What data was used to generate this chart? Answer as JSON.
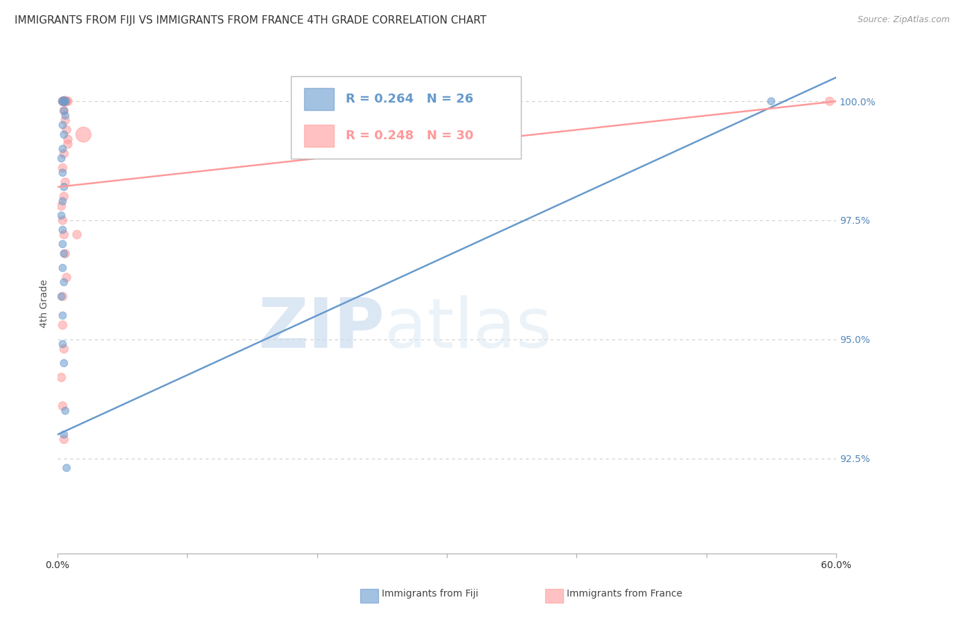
{
  "title": "IMMIGRANTS FROM FIJI VS IMMIGRANTS FROM FRANCE 4TH GRADE CORRELATION CHART",
  "source": "Source: ZipAtlas.com",
  "ylabel": "4th Grade",
  "x_min": 0.0,
  "x_max": 60.0,
  "y_min": 90.5,
  "y_max": 101.0,
  "y_ticks": [
    92.5,
    95.0,
    97.5,
    100.0
  ],
  "fiji_color": "#6699CC",
  "france_color": "#FF9999",
  "fiji_R": 0.264,
  "fiji_N": 26,
  "france_R": 0.248,
  "france_N": 30,
  "fiji_scatter_x": [
    0.4,
    0.5,
    0.6,
    0.5,
    0.6,
    0.4,
    0.5,
    0.4,
    0.3,
    0.4,
    0.5,
    0.4,
    0.3,
    0.4,
    0.4,
    0.5,
    0.4,
    0.5,
    0.3,
    0.4,
    0.4,
    0.5,
    0.6,
    0.5,
    0.7,
    55.0
  ],
  "fiji_scatter_y": [
    100.0,
    100.0,
    100.0,
    99.8,
    99.7,
    99.5,
    99.3,
    99.0,
    98.8,
    98.5,
    98.2,
    97.9,
    97.6,
    97.3,
    97.0,
    96.8,
    96.5,
    96.2,
    95.9,
    95.5,
    94.9,
    94.5,
    93.5,
    93.0,
    92.3,
    100.0
  ],
  "fiji_scatter_size": [
    80,
    80,
    70,
    60,
    60,
    60,
    60,
    60,
    60,
    60,
    60,
    60,
    60,
    60,
    60,
    60,
    60,
    60,
    60,
    60,
    60,
    60,
    60,
    60,
    60,
    60
  ],
  "france_scatter_x": [
    0.4,
    0.5,
    0.6,
    0.5,
    0.6,
    0.7,
    0.8,
    0.5,
    0.6,
    0.7,
    0.8,
    0.5,
    0.4,
    0.6,
    0.5,
    0.3,
    0.4,
    0.5,
    0.6,
    0.7,
    0.4,
    1.5,
    2.0,
    0.4,
    0.5,
    0.3,
    0.4,
    0.5,
    0.8,
    59.5
  ],
  "france_scatter_y": [
    100.0,
    100.0,
    100.0,
    100.0,
    100.0,
    100.0,
    100.0,
    99.8,
    99.6,
    99.4,
    99.2,
    98.9,
    98.6,
    98.3,
    98.0,
    97.8,
    97.5,
    97.2,
    96.8,
    96.3,
    95.9,
    97.2,
    99.3,
    95.3,
    94.8,
    94.2,
    93.6,
    92.9,
    99.1,
    100.0
  ],
  "france_scatter_size": [
    80,
    100,
    100,
    100,
    100,
    80,
    80,
    80,
    80,
    80,
    80,
    80,
    80,
    80,
    80,
    80,
    80,
    80,
    80,
    80,
    80,
    80,
    250,
    80,
    80,
    80,
    80,
    80,
    80,
    80
  ],
  "fiji_trendline_x": [
    0.0,
    60.0
  ],
  "fiji_trendline_y": [
    93.0,
    100.5
  ],
  "france_trendline_x": [
    0.0,
    60.0
  ],
  "france_trendline_y": [
    98.2,
    100.0
  ],
  "watermark_zip": "ZIP",
  "watermark_atlas": "atlas",
  "bg_color": "#ffffff",
  "grid_color": "#cccccc",
  "right_axis_color": "#5588BB",
  "title_fontsize": 11,
  "axis_label_fontsize": 10,
  "legend_fiji_label": "R = 0.264   N = 26",
  "legend_france_label": "R = 0.248   N = 30",
  "bottom_legend_fiji": "Immigrants from Fiji",
  "bottom_legend_france": "Immigrants from France"
}
